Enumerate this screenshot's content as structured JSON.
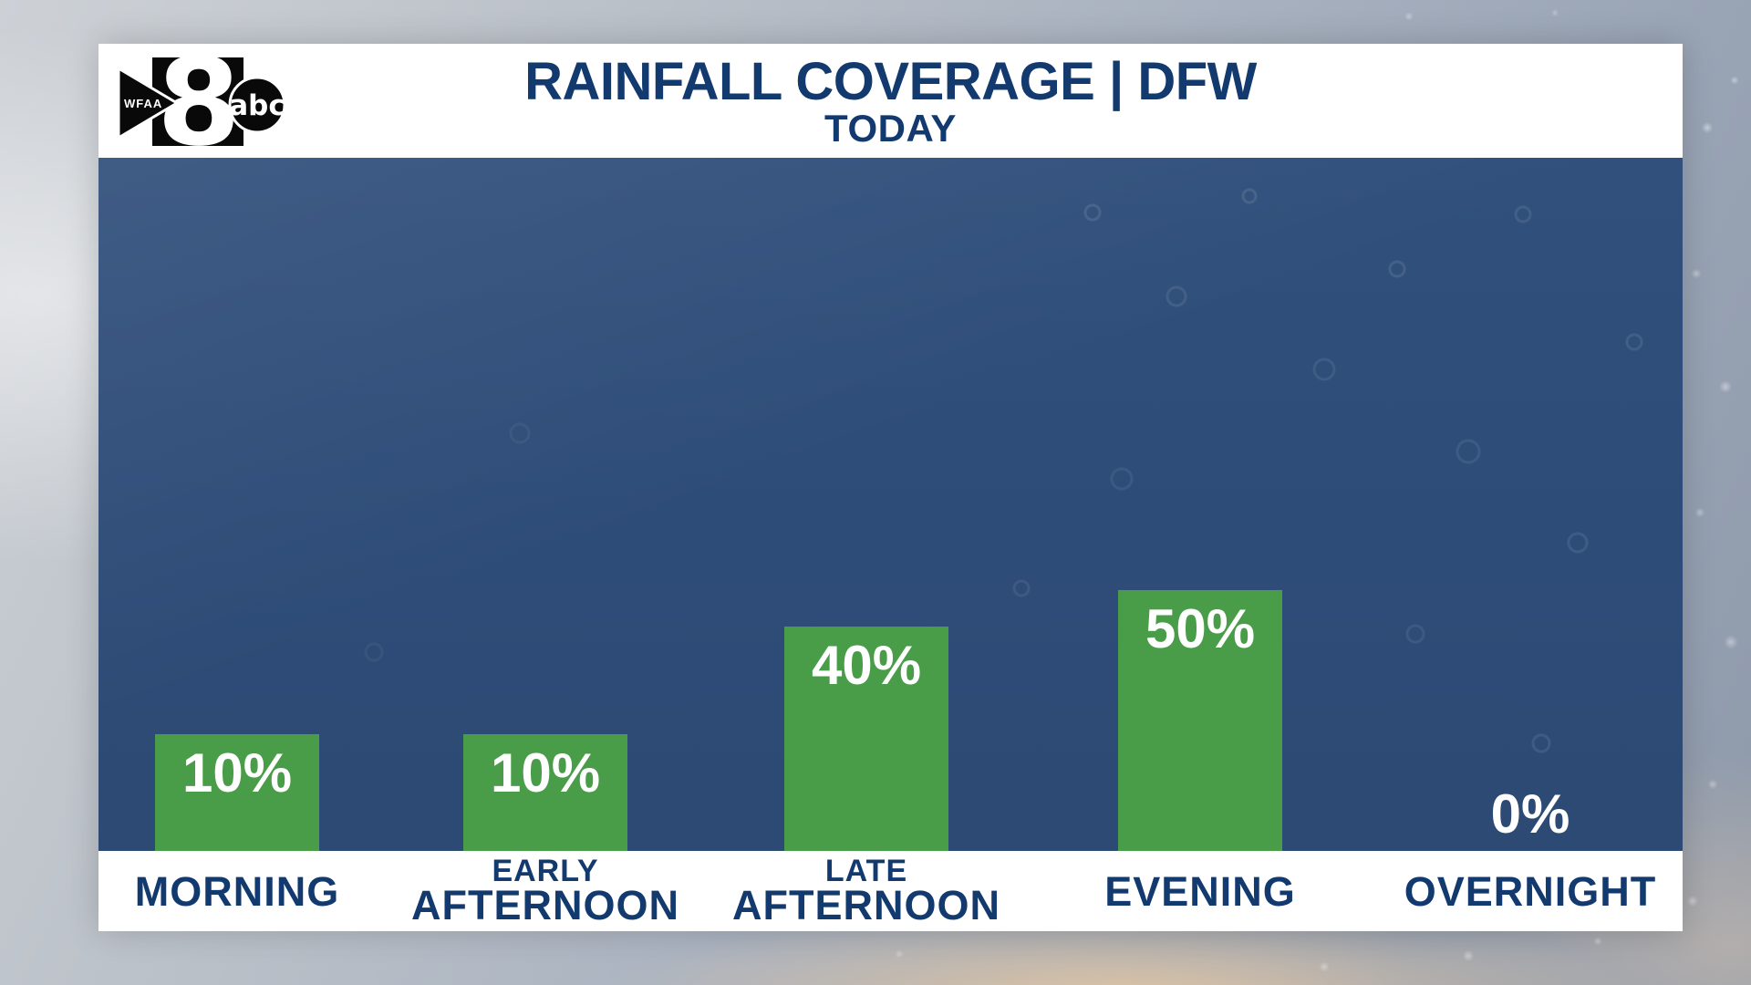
{
  "header": {
    "title": "RAINFALL COVERAGE | DFW",
    "subtitle": "TODAY",
    "logo": {
      "station": "WFAA",
      "channel": "8",
      "network": "abc"
    }
  },
  "chart_data": {
    "type": "bar",
    "title": "RAINFALL COVERAGE | DFW",
    "subtitle": "TODAY",
    "categories": [
      "MORNING",
      "EARLY AFTERNOON",
      "LATE AFTERNOON",
      "EVENING",
      "OVERNIGHT"
    ],
    "category_lines": [
      [
        "MORNING"
      ],
      [
        "EARLY",
        "AFTERNOON"
      ],
      [
        "LATE",
        "AFTERNOON"
      ],
      [
        "EVENING"
      ],
      [
        "OVERNIGHT"
      ]
    ],
    "values": [
      10,
      10,
      40,
      50,
      0
    ],
    "value_labels": [
      "10%",
      "10%",
      "40%",
      "50%",
      "0%"
    ],
    "unit": "%",
    "ylim": [
      0,
      100
    ],
    "grid": false,
    "legend": false,
    "orientation": "vertical",
    "colors": {
      "bar": "#4a9d48",
      "plot_background": "#2e4c78",
      "value_label": "#ffffff",
      "category_label": "#133a6e",
      "title": "#133a6e",
      "panel_background": "#ffffff"
    }
  }
}
